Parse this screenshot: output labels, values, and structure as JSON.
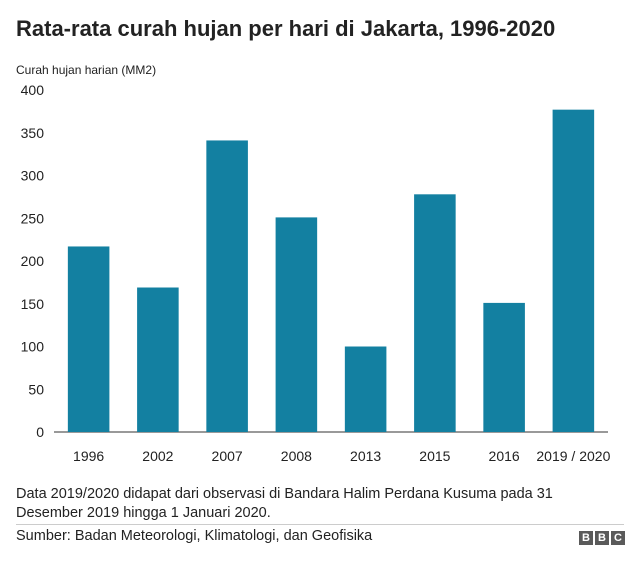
{
  "chart_data": {
    "type": "bar",
    "title": "Rata-rata curah hujan per hari di Jakarta, 1996-2020",
    "ylabel": "Curah hujan harian (MM2)",
    "xlabel": "",
    "categories": [
      "1996",
      "2002",
      "2007",
      "2008",
      "2013",
      "2015",
      "2016",
      "2019 / 2020"
    ],
    "values": [
      217,
      169,
      341,
      251,
      100,
      278,
      151,
      377
    ],
    "ylim": [
      0,
      400
    ],
    "yticks": [
      "400",
      "350",
      "300",
      "250",
      "200",
      "150",
      "100",
      "50",
      "0"
    ],
    "grid": false,
    "bar_color": "#1380a1"
  },
  "footnote": "Data 2019/2020 didapat dari observasi di Bandara Halim Perdana Kusuma pada 31 Desember 2019 hingga 1 Januari 2020.",
  "source": "Sumber: Badan Meteorologi, Klimatologi, dan Geofisika",
  "logo": [
    "B",
    "B",
    "C"
  ]
}
